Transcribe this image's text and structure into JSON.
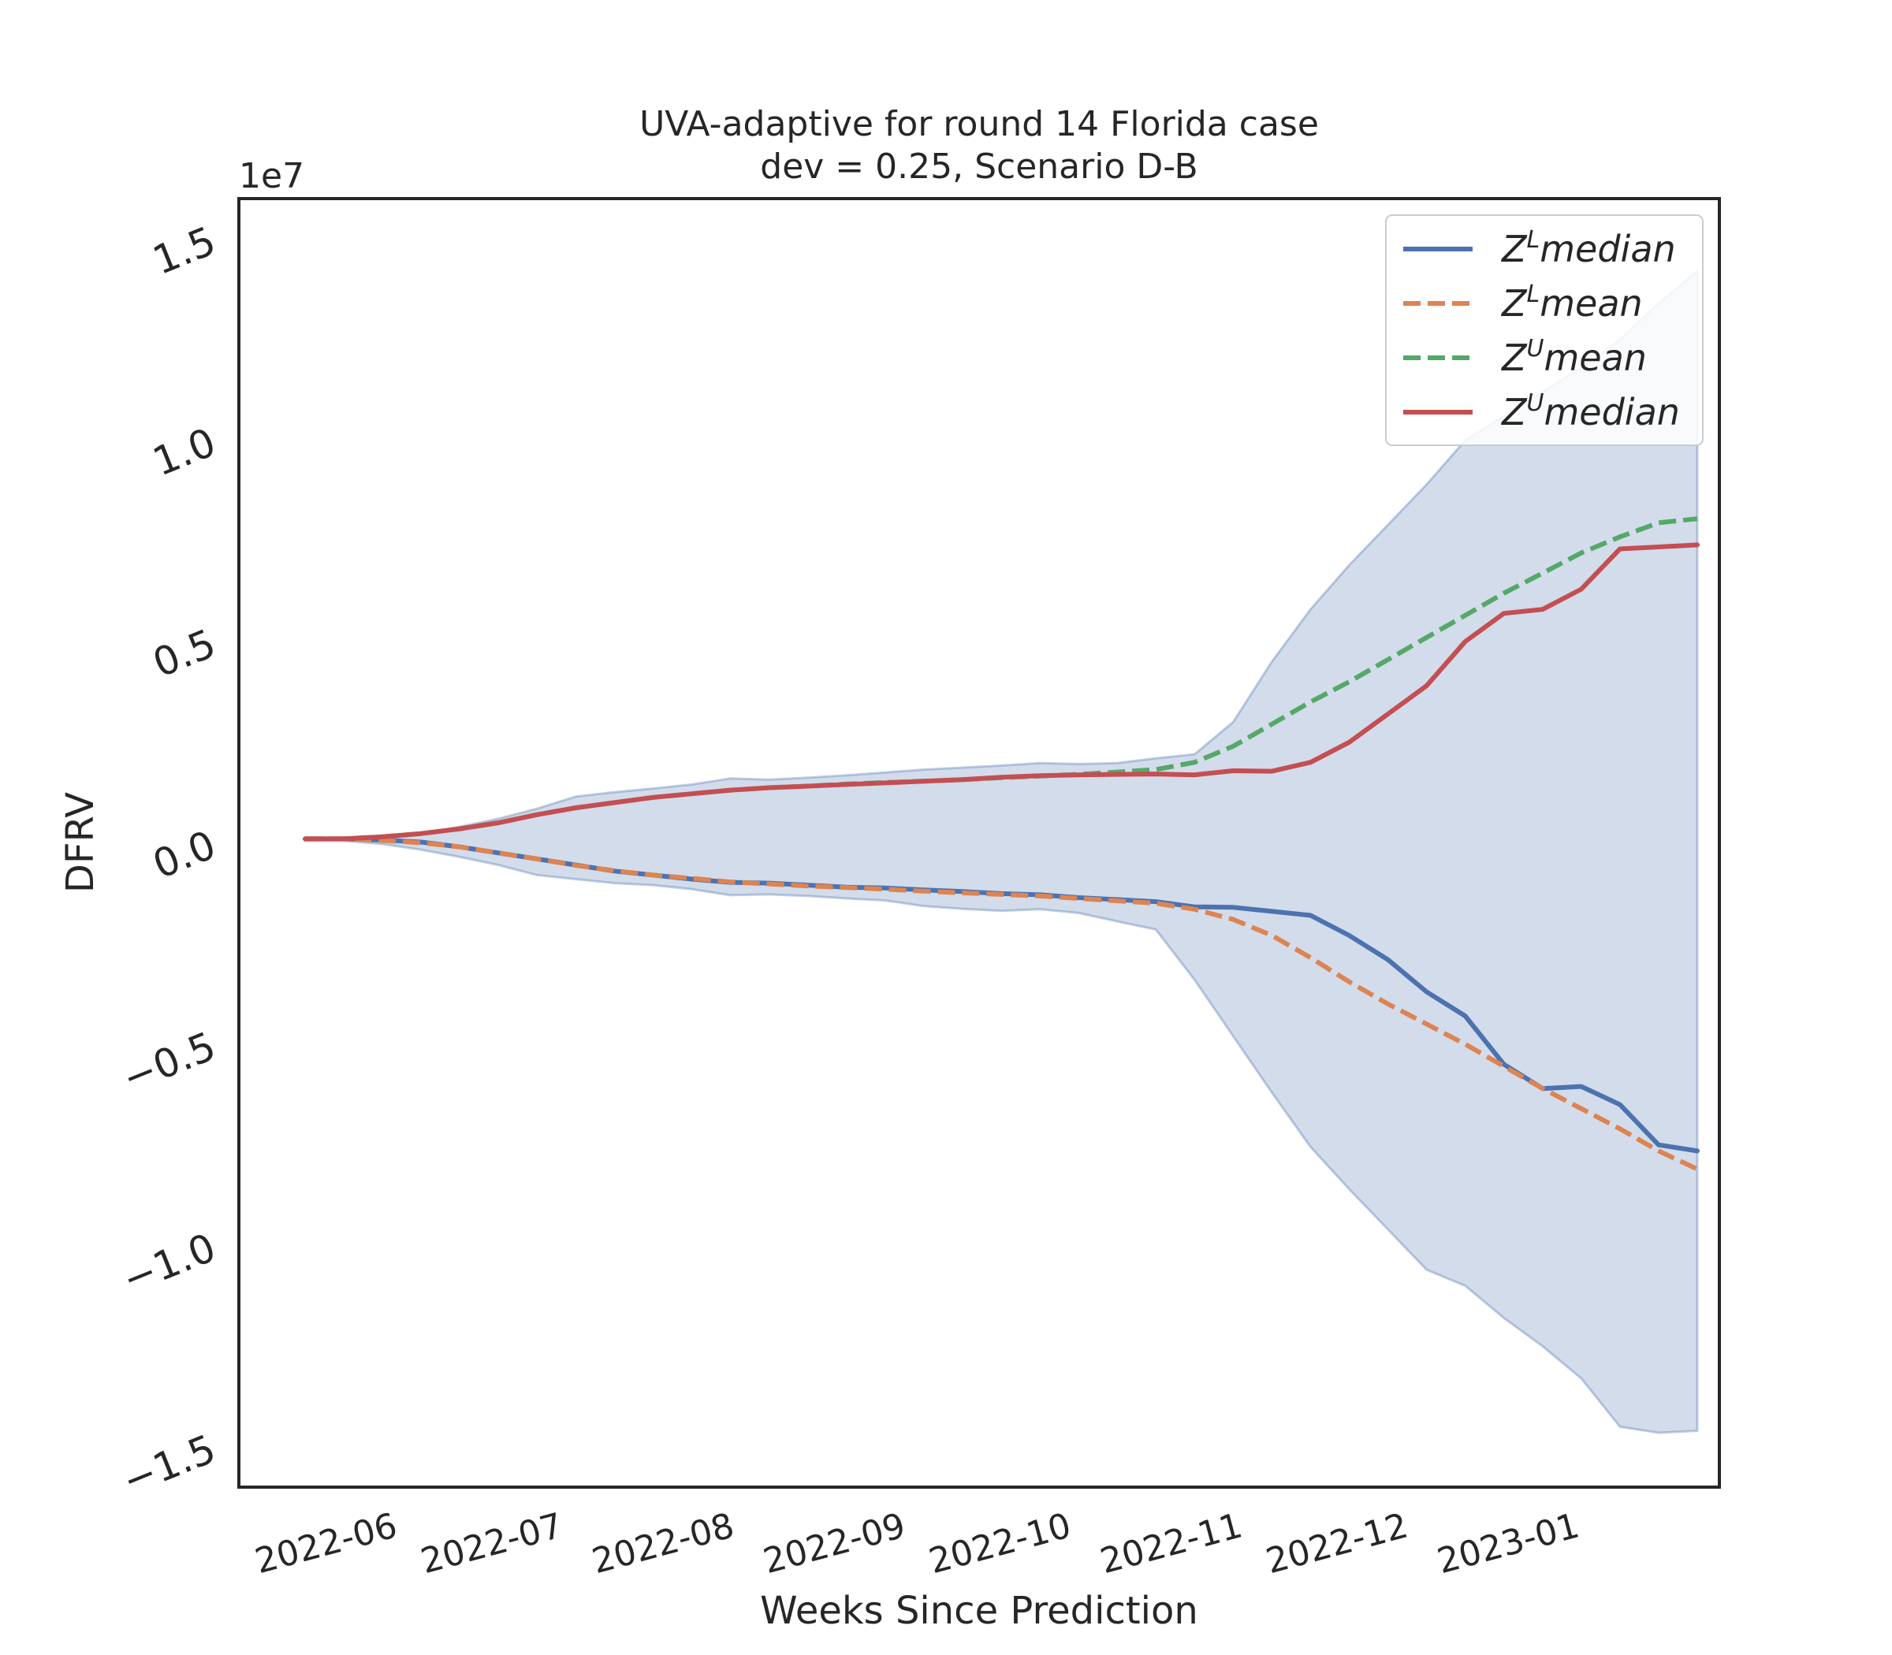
{
  "chart_data": {
    "type": "line",
    "title": "UVA-adaptive for round 14 Florida case",
    "subtitle": "dev = 0.25, Scenario D-B",
    "xlabel": "Weeks Since Prediction",
    "ylabel": "DFRV",
    "y_offset_label": "1e7",
    "xlim": [
      "2022-05-05",
      "2023-01-28"
    ],
    "ylim": [
      -16000000,
      16000000
    ],
    "x_ticks": [
      {
        "date": "2022-06-01",
        "label": "2022-06"
      },
      {
        "date": "2022-07-01",
        "label": "2022-07"
      },
      {
        "date": "2022-08-01",
        "label": "2022-08"
      },
      {
        "date": "2022-09-01",
        "label": "2022-09"
      },
      {
        "date": "2022-10-01",
        "label": "2022-10"
      },
      {
        "date": "2022-11-01",
        "label": "2022-11"
      },
      {
        "date": "2022-12-01",
        "label": "2022-12"
      },
      {
        "date": "2023-01-01",
        "label": "2023-01"
      }
    ],
    "y_ticks": [
      {
        "value": 15000000,
        "label": "1.5"
      },
      {
        "value": 10000000,
        "label": "1.0"
      },
      {
        "value": 5000000,
        "label": "0.5"
      },
      {
        "value": 0,
        "label": "0.0"
      },
      {
        "value": -5000000,
        "label": "−0.5"
      },
      {
        "value": -10000000,
        "label": "−1.0"
      },
      {
        "value": -15000000,
        "label": "−1.5"
      }
    ],
    "grid": false,
    "legend_position": "top-right",
    "x": [
      "2022-05-17",
      "2022-05-24",
      "2022-05-31",
      "2022-06-07",
      "2022-06-14",
      "2022-06-21",
      "2022-06-28",
      "2022-07-05",
      "2022-07-12",
      "2022-07-19",
      "2022-07-26",
      "2022-08-02",
      "2022-08-09",
      "2022-08-16",
      "2022-08-23",
      "2022-08-30",
      "2022-09-06",
      "2022-09-13",
      "2022-09-20",
      "2022-09-27",
      "2022-10-04",
      "2022-10-11",
      "2022-10-18",
      "2022-10-25",
      "2022-11-01",
      "2022-11-08",
      "2022-11-15",
      "2022-11-22",
      "2022-11-29",
      "2022-12-06",
      "2022-12-13",
      "2022-12-20",
      "2022-12-27",
      "2023-01-03",
      "2023-01-10",
      "2023-01-17",
      "2023-01-24"
    ],
    "band": {
      "color": "#4c72b0",
      "opacity": 0.25,
      "upper": [
        100000,
        100000,
        150000,
        230000,
        400000,
        600000,
        850000,
        1150000,
        1260000,
        1350000,
        1450000,
        1600000,
        1570000,
        1620000,
        1680000,
        1750000,
        1820000,
        1870000,
        1920000,
        1980000,
        1960000,
        1980000,
        2100000,
        2200000,
        3000000,
        4500000,
        5800000,
        6900000,
        7900000,
        8900000,
        10000000,
        10600000,
        11200000,
        11800000,
        12500000,
        13400000,
        14200000
      ],
      "lower": [
        50000,
        50000,
        -30000,
        -170000,
        -350000,
        -550000,
        -800000,
        -900000,
        -1000000,
        -1050000,
        -1150000,
        -1300000,
        -1280000,
        -1320000,
        -1380000,
        -1430000,
        -1570000,
        -1640000,
        -1690000,
        -1650000,
        -1740000,
        -1950000,
        -2150000,
        -3400000,
        -4800000,
        -6200000,
        -7550000,
        -8600000,
        -9600000,
        -10600000,
        -11000000,
        -11800000,
        -12500000,
        -13300000,
        -14500000,
        -14650000,
        -14600000
      ]
    },
    "series": [
      {
        "name": "Z^L median",
        "color": "#4c72b0",
        "dash": false,
        "values": [
          100000,
          100000,
          70000,
          20000,
          -100000,
          -250000,
          -400000,
          -550000,
          -700000,
          -800000,
          -900000,
          -980000,
          -1000000,
          -1050000,
          -1100000,
          -1120000,
          -1170000,
          -1210000,
          -1260000,
          -1290000,
          -1360000,
          -1410000,
          -1460000,
          -1590000,
          -1600000,
          -1700000,
          -1800000,
          -2300000,
          -2900000,
          -3700000,
          -4300000,
          -5500000,
          -6100000,
          -6050000,
          -6500000,
          -7500000,
          -7650000
        ]
      },
      {
        "name": "Z^L mean",
        "color": "#dd8452",
        "dash": true,
        "values": [
          100000,
          100000,
          60000,
          0,
          -100000,
          -250000,
          -400000,
          -560000,
          -690000,
          -800000,
          -880000,
          -970000,
          -1020000,
          -1070000,
          -1110000,
          -1150000,
          -1200000,
          -1240000,
          -1280000,
          -1320000,
          -1380000,
          -1440000,
          -1500000,
          -1650000,
          -1900000,
          -2300000,
          -2850000,
          -3450000,
          -4000000,
          -4500000,
          -5000000,
          -5550000,
          -6100000,
          -6600000,
          -7100000,
          -7650000,
          -8100000
        ]
      },
      {
        "name": "Z^U mean",
        "color": "#55a868",
        "dash": true,
        "values": [
          100000,
          100000,
          150000,
          230000,
          350000,
          500000,
          700000,
          870000,
          1000000,
          1130000,
          1220000,
          1310000,
          1370000,
          1410000,
          1460000,
          1500000,
          1530000,
          1570000,
          1620000,
          1660000,
          1700000,
          1760000,
          1820000,
          2000000,
          2400000,
          2950000,
          3500000,
          4000000,
          4550000,
          5100000,
          5650000,
          6200000,
          6700000,
          7200000,
          7600000,
          7950000,
          8050000
        ]
      },
      {
        "name": "Z^U median",
        "color": "#c44e52",
        "dash": false,
        "values": [
          100000,
          100000,
          150000,
          230000,
          350000,
          500000,
          700000,
          870000,
          1000000,
          1130000,
          1220000,
          1310000,
          1370000,
          1410000,
          1450000,
          1490000,
          1530000,
          1570000,
          1630000,
          1670000,
          1690000,
          1700000,
          1710000,
          1690000,
          1790000,
          1780000,
          2000000,
          2500000,
          3200000,
          3900000,
          5000000,
          5700000,
          5800000,
          6300000,
          7300000,
          7350000,
          7400000
        ]
      }
    ],
    "legend": [
      {
        "base": "Z",
        "sup": "L",
        "text": "median"
      },
      {
        "base": "Z",
        "sup": "L",
        "text": "mean"
      },
      {
        "base": "Z",
        "sup": "U",
        "text": "mean"
      },
      {
        "base": "Z",
        "sup": "U",
        "text": "median"
      }
    ]
  }
}
